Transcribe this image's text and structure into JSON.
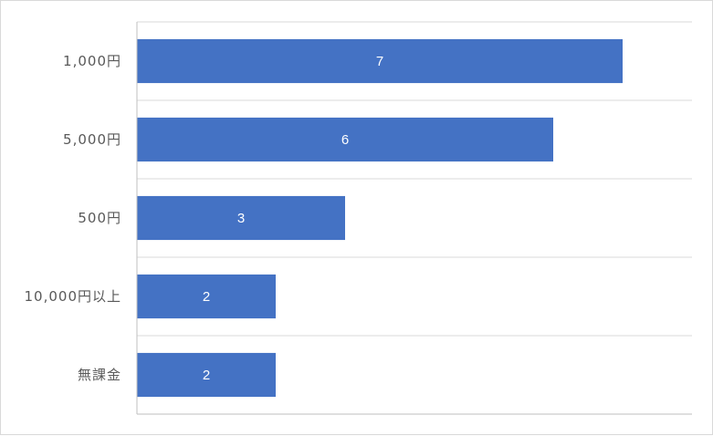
{
  "chart_data": {
    "type": "bar",
    "orientation": "horizontal",
    "categories": [
      "1,000円",
      "5,000円",
      "500円",
      "10,000円以上",
      "無課金"
    ],
    "values": [
      7,
      6,
      3,
      2,
      2
    ],
    "xlim": [
      0,
      8
    ],
    "grid": "horizontal separators between categories",
    "data_labels": "inside bar, centered",
    "colors": {
      "bar": "#4472c4",
      "grid": "#d9d9d9",
      "axis": "#bfbfbf",
      "category_text": "#595959",
      "value_text": "#ffffff"
    }
  }
}
